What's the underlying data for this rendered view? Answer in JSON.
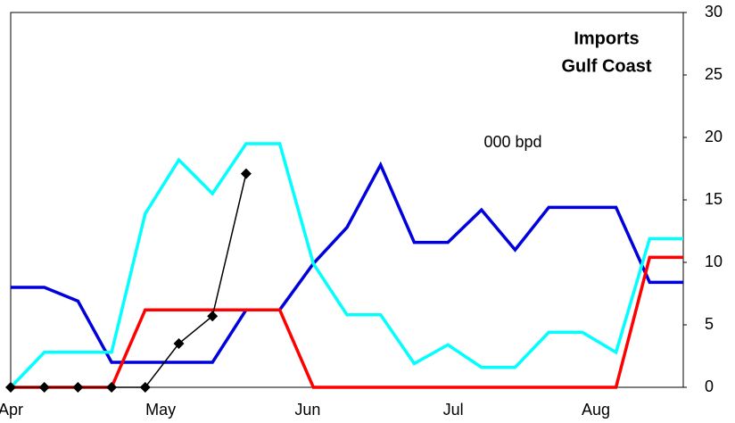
{
  "chart_data": {
    "type": "line",
    "title": [
      "Imports",
      "Gulf Coast"
    ],
    "annotation": "000 bpd",
    "x": [
      0,
      1,
      2,
      3,
      4,
      5,
      6,
      7,
      8,
      9,
      10,
      11,
      12,
      13,
      14,
      15,
      16,
      17,
      18,
      19,
      20
    ],
    "xlim": [
      0,
      20
    ],
    "xticks": [
      {
        "value": 0,
        "label": "Apr"
      },
      {
        "value": 4.46,
        "label": "May"
      },
      {
        "value": 8.83,
        "label": "Jun"
      },
      {
        "value": 13.16,
        "label": "Jul"
      },
      {
        "value": 17.4,
        "label": "Aug"
      }
    ],
    "ylim": [
      0,
      30
    ],
    "yticks": [
      0,
      5,
      10,
      15,
      20,
      25,
      30
    ],
    "grid": false,
    "series": [
      {
        "color": "#0000dd",
        "width": 3.5,
        "markers": false,
        "values": [
          8,
          8,
          6.9,
          2,
          2,
          2,
          2,
          6.2,
          6.2,
          9.9,
          12.8,
          17.8,
          11.6,
          11.6,
          14.2,
          11,
          14.4,
          14.4,
          14.4,
          8.4,
          8.4
        ]
      },
      {
        "color": "#00ffff",
        "width": 3.5,
        "markers": false,
        "values": [
          0,
          2.8,
          2.8,
          2.8,
          13.9,
          18.2,
          15.5,
          19.5,
          19.5,
          9.9,
          5.8,
          5.8,
          1.9,
          3.4,
          1.6,
          1.6,
          4.4,
          4.4,
          2.8,
          11.9,
          11.9
        ]
      },
      {
        "color": "#ff0000",
        "width": 3.5,
        "markers": false,
        "values": [
          0,
          0,
          0,
          0,
          6.2,
          6.2,
          6.2,
          6.2,
          6.2,
          0,
          0,
          0,
          0,
          0,
          0,
          0,
          0,
          0,
          0,
          10.4,
          10.4
        ]
      },
      {
        "color": "#000000",
        "width": 1.5,
        "markers": true,
        "values": [
          0,
          0,
          0,
          0,
          0,
          3.5,
          5.7,
          17.1,
          null,
          null,
          null,
          null,
          null,
          null,
          null,
          null,
          null,
          null,
          null,
          null,
          null
        ]
      }
    ]
  }
}
